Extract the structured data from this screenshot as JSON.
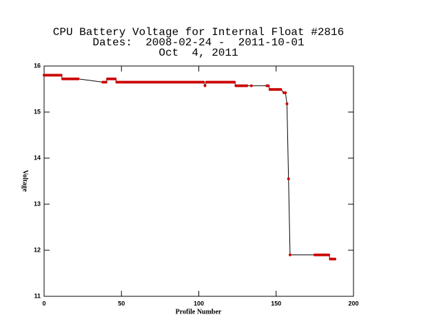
{
  "chart_data": {
    "type": "line",
    "title": [
      "CPU Battery Voltage for Internal Float #2816",
      "Dates:  2008-02-24 -  2011-10-01",
      "Oct  4, 2011"
    ],
    "xlabel": "Profile Number",
    "ylabel": "Voltage",
    "xlim": [
      0,
      200
    ],
    "xticks": [
      0,
      50,
      100,
      150,
      200
    ],
    "ylim": [
      11,
      16
    ],
    "yticks": [
      11,
      12,
      13,
      14,
      15,
      16
    ],
    "line_color": "#000000",
    "marker_color": "#cc0000",
    "x": [
      0,
      1,
      2,
      3,
      4,
      5,
      6,
      7,
      8,
      9,
      10,
      11,
      12,
      13,
      14,
      15,
      16,
      17,
      18,
      19,
      20,
      21,
      22,
      38,
      39,
      40,
      41,
      42,
      43,
      44,
      45,
      46,
      47,
      48,
      49,
      50,
      51,
      52,
      53,
      54,
      55,
      56,
      57,
      58,
      59,
      60,
      61,
      62,
      63,
      64,
      65,
      66,
      67,
      68,
      69,
      70,
      71,
      72,
      73,
      74,
      75,
      76,
      77,
      78,
      79,
      80,
      81,
      82,
      83,
      84,
      85,
      86,
      87,
      88,
      89,
      90,
      91,
      92,
      93,
      94,
      95,
      96,
      97,
      98,
      99,
      100,
      101,
      102,
      103,
      104,
      105,
      106,
      107,
      108,
      109,
      110,
      111,
      112,
      113,
      114,
      115,
      116,
      117,
      118,
      119,
      120,
      121,
      122,
      123,
      124,
      125,
      126,
      127,
      128,
      129,
      130,
      131,
      134,
      144,
      145,
      146,
      147,
      148,
      149,
      150,
      151,
      152,
      153,
      155,
      156,
      157,
      158,
      159,
      175,
      176,
      177,
      178,
      179,
      180,
      181,
      182,
      183,
      184,
      185,
      186,
      187,
      188
    ],
    "y": [
      15.8,
      15.8,
      15.8,
      15.8,
      15.8,
      15.8,
      15.8,
      15.8,
      15.8,
      15.8,
      15.8,
      15.8,
      15.72,
      15.72,
      15.72,
      15.72,
      15.72,
      15.72,
      15.72,
      15.72,
      15.72,
      15.72,
      15.72,
      15.65,
      15.65,
      15.65,
      15.72,
      15.72,
      15.72,
      15.72,
      15.72,
      15.72,
      15.65,
      15.65,
      15.65,
      15.65,
      15.65,
      15.65,
      15.65,
      15.65,
      15.65,
      15.65,
      15.65,
      15.65,
      15.65,
      15.65,
      15.65,
      15.65,
      15.65,
      15.65,
      15.65,
      15.65,
      15.65,
      15.65,
      15.65,
      15.65,
      15.65,
      15.65,
      15.65,
      15.65,
      15.65,
      15.65,
      15.65,
      15.65,
      15.65,
      15.65,
      15.65,
      15.65,
      15.65,
      15.65,
      15.65,
      15.65,
      15.65,
      15.65,
      15.65,
      15.65,
      15.65,
      15.65,
      15.65,
      15.65,
      15.65,
      15.65,
      15.65,
      15.65,
      15.65,
      15.65,
      15.65,
      15.65,
      15.65,
      15.57,
      15.65,
      15.65,
      15.65,
      15.65,
      15.65,
      15.65,
      15.65,
      15.65,
      15.65,
      15.65,
      15.65,
      15.65,
      15.65,
      15.65,
      15.65,
      15.65,
      15.65,
      15.65,
      15.65,
      15.57,
      15.57,
      15.57,
      15.57,
      15.57,
      15.57,
      15.57,
      15.57,
      15.57,
      15.57,
      15.57,
      15.49,
      15.49,
      15.49,
      15.49,
      15.49,
      15.49,
      15.49,
      15.49,
      15.42,
      15.42,
      15.18,
      13.55,
      11.9,
      11.9,
      11.9,
      11.9,
      11.9,
      11.9,
      11.9,
      11.9,
      11.9,
      11.9,
      11.9,
      11.81,
      11.81,
      11.81,
      11.81
    ]
  }
}
